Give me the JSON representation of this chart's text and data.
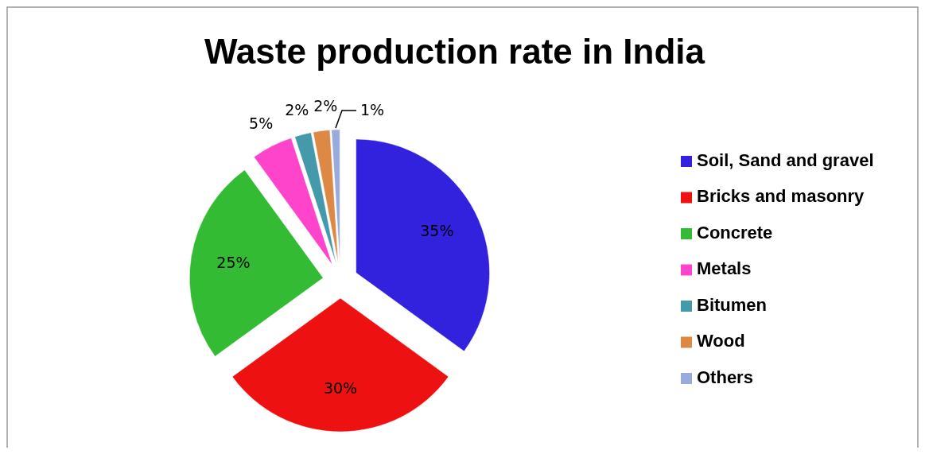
{
  "chart_data": {
    "type": "pie",
    "title": "Waste production rate in India",
    "categories": [
      "Soil, Sand and gravel",
      "Bricks and masonry",
      "Concrete",
      "Metals",
      "Bitumen",
      "Wood",
      "Others"
    ],
    "values": [
      35,
      30,
      25,
      5,
      2,
      2,
      1
    ],
    "value_labels": [
      "35%",
      "30%",
      "25%",
      "5%",
      "2%",
      "2%",
      "1%"
    ],
    "colors": [
      "#3322dd",
      "#ee1111",
      "#33bb33",
      "#ff44cc",
      "#4499aa",
      "#dd8844",
      "#99aadd"
    ],
    "legend": "right"
  }
}
